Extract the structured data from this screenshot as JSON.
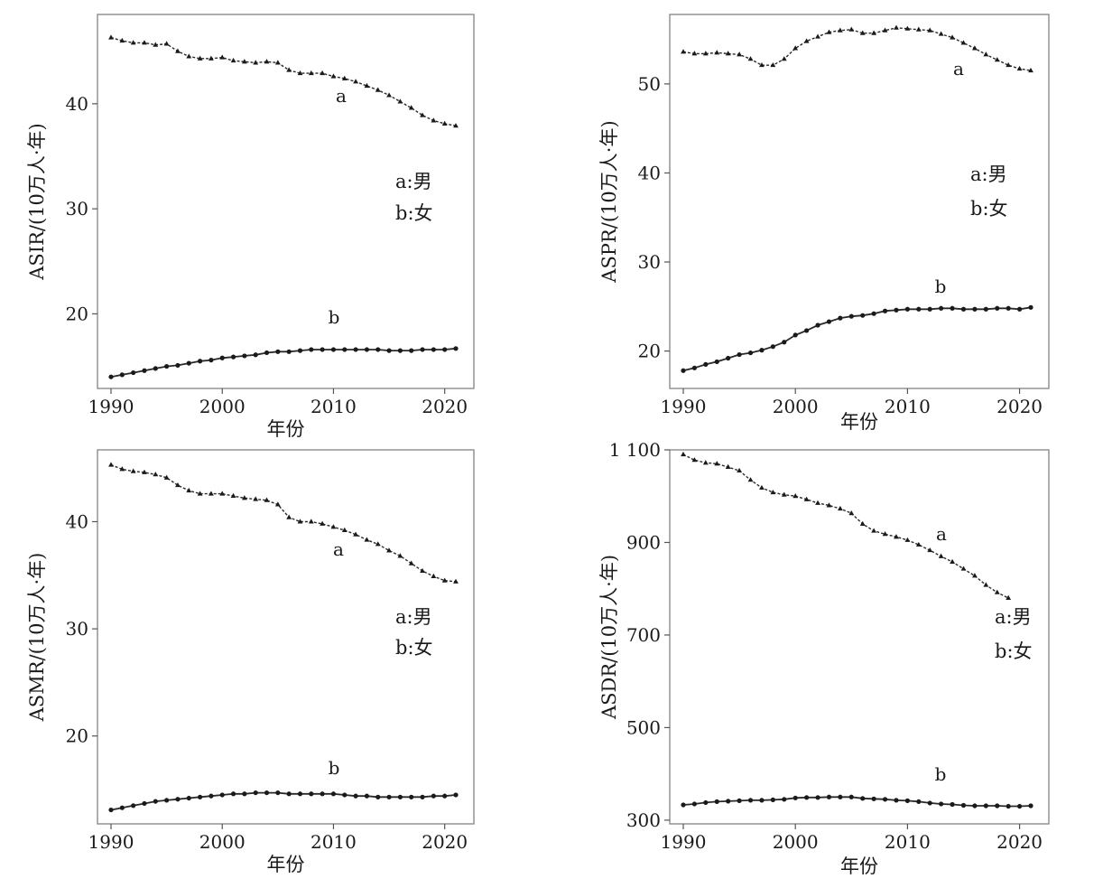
{
  "chart_data": [
    {
      "type": "line",
      "ylabel": "ASIR/(10万人·年)",
      "xlabel": "年份",
      "xlim": [
        1990,
        2021
      ],
      "ylim": [
        12.9,
        48.5
      ],
      "xticks": [
        1990,
        2000,
        2010,
        2020
      ],
      "xtick_labels": [
        "1990",
        "2000",
        "2010",
        "2020"
      ],
      "yticks": [
        20,
        30,
        40
      ],
      "ytick_labels": [
        "20",
        "30",
        "40"
      ],
      "legend": [
        "a:男",
        "b:女"
      ],
      "series": [
        {
          "label": "a",
          "x": [
            1990,
            1991,
            1992,
            1993,
            1994,
            1995,
            1996,
            1997,
            1998,
            1999,
            2000,
            2001,
            2002,
            2003,
            2004,
            2005,
            2006,
            2007,
            2008,
            2009,
            2010,
            2011,
            2012,
            2013,
            2014,
            2015,
            2016,
            2017,
            2018,
            2019,
            2020,
            2021
          ],
          "values": [
            46.3,
            46.0,
            45.8,
            45.8,
            45.6,
            45.7,
            45.0,
            44.5,
            44.3,
            44.3,
            44.4,
            44.1,
            44.0,
            43.9,
            44.0,
            43.9,
            43.2,
            42.9,
            42.9,
            42.9,
            42.6,
            42.4,
            42.1,
            41.7,
            41.3,
            40.8,
            40.2,
            39.6,
            38.9,
            38.4,
            38.1,
            37.9
          ]
        },
        {
          "label": "b",
          "x": [
            1990,
            1991,
            1992,
            1993,
            1994,
            1995,
            1996,
            1997,
            1998,
            1999,
            2000,
            2001,
            2002,
            2003,
            2004,
            2005,
            2006,
            2007,
            2008,
            2009,
            2010,
            2011,
            2012,
            2013,
            2014,
            2015,
            2016,
            2017,
            2018,
            2019,
            2020,
            2021
          ],
          "values": [
            14.0,
            14.2,
            14.4,
            14.6,
            14.8,
            15.0,
            15.1,
            15.3,
            15.5,
            15.6,
            15.8,
            15.9,
            16.0,
            16.1,
            16.3,
            16.4,
            16.4,
            16.5,
            16.6,
            16.6,
            16.6,
            16.6,
            16.6,
            16.6,
            16.6,
            16.5,
            16.5,
            16.5,
            16.6,
            16.6,
            16.6,
            16.7
          ]
        }
      ]
    },
    {
      "type": "line",
      "ylabel": "ASPR/(10万人·年)",
      "xlabel": "年份",
      "xlim": [
        1990,
        2021
      ],
      "ylim": [
        15.8,
        57.8
      ],
      "xticks": [
        1990,
        2000,
        2010,
        2020
      ],
      "xtick_labels": [
        "1990",
        "2000",
        "2010",
        "2020"
      ],
      "yticks": [
        20,
        30,
        40,
        50
      ],
      "ytick_labels": [
        "20",
        "30",
        "40",
        "50"
      ],
      "legend": [
        "a:男",
        "b:女"
      ],
      "series": [
        {
          "label": "a",
          "x": [
            1990,
            1991,
            1992,
            1993,
            1994,
            1995,
            1996,
            1997,
            1998,
            1999,
            2000,
            2001,
            2002,
            2003,
            2004,
            2005,
            2006,
            2007,
            2008,
            2009,
            2010,
            2011,
            2012,
            2013,
            2014,
            2015,
            2016,
            2017,
            2018,
            2019,
            2020,
            2021
          ],
          "values": [
            53.6,
            53.4,
            53.4,
            53.5,
            53.4,
            53.3,
            52.8,
            52.1,
            52.1,
            52.8,
            54.0,
            54.8,
            55.3,
            55.8,
            56.0,
            56.1,
            55.7,
            55.7,
            56.0,
            56.3,
            56.2,
            56.1,
            56.0,
            55.6,
            55.2,
            54.6,
            54.0,
            53.3,
            52.7,
            52.1,
            51.7,
            51.5
          ]
        },
        {
          "label": "b",
          "x": [
            1990,
            1991,
            1992,
            1993,
            1994,
            1995,
            1996,
            1997,
            1998,
            1999,
            2000,
            2001,
            2002,
            2003,
            2004,
            2005,
            2006,
            2007,
            2008,
            2009,
            2010,
            2011,
            2012,
            2013,
            2014,
            2015,
            2016,
            2017,
            2018,
            2019,
            2020,
            2021
          ],
          "values": [
            17.8,
            18.1,
            18.5,
            18.8,
            19.2,
            19.6,
            19.8,
            20.1,
            20.5,
            21.0,
            21.8,
            22.3,
            22.9,
            23.3,
            23.7,
            23.9,
            24.0,
            24.2,
            24.5,
            24.6,
            24.7,
            24.7,
            24.7,
            24.8,
            24.8,
            24.7,
            24.7,
            24.7,
            24.8,
            24.8,
            24.7,
            24.9
          ]
        }
      ]
    },
    {
      "type": "line",
      "ylabel": "ASMR/(10万人·年)",
      "xlabel": "年份",
      "xlim": [
        1990,
        2021
      ],
      "ylim": [
        11.8,
        46.7
      ],
      "xticks": [
        1990,
        2000,
        2010,
        2020
      ],
      "xtick_labels": [
        "1990",
        "2000",
        "2010",
        "2020"
      ],
      "yticks": [
        20,
        30,
        40
      ],
      "ytick_labels": [
        "20",
        "30",
        "40"
      ],
      "legend": [
        "a:男",
        "b:女"
      ],
      "series": [
        {
          "label": "a",
          "x": [
            1990,
            1991,
            1992,
            1993,
            1994,
            1995,
            1996,
            1997,
            1998,
            1999,
            2000,
            2001,
            2002,
            2003,
            2004,
            2005,
            2006,
            2007,
            2008,
            2009,
            2010,
            2011,
            2012,
            2013,
            2014,
            2015,
            2016,
            2017,
            2018,
            2019,
            2020,
            2021
          ],
          "values": [
            45.3,
            44.9,
            44.7,
            44.6,
            44.4,
            44.1,
            43.4,
            42.9,
            42.6,
            42.6,
            42.6,
            42.4,
            42.2,
            42.1,
            42.0,
            41.6,
            40.4,
            40.0,
            40.0,
            39.8,
            39.5,
            39.2,
            38.8,
            38.3,
            37.9,
            37.3,
            36.8,
            36.1,
            35.4,
            34.9,
            34.5,
            34.4
          ]
        },
        {
          "label": "b",
          "x": [
            1990,
            1991,
            1992,
            1993,
            1994,
            1995,
            1996,
            1997,
            1998,
            1999,
            2000,
            2001,
            2002,
            2003,
            2004,
            2005,
            2006,
            2007,
            2008,
            2009,
            2010,
            2011,
            2012,
            2013,
            2014,
            2015,
            2016,
            2017,
            2018,
            2019,
            2020,
            2021
          ],
          "values": [
            13.1,
            13.3,
            13.5,
            13.7,
            13.9,
            14.0,
            14.1,
            14.2,
            14.3,
            14.4,
            14.5,
            14.6,
            14.6,
            14.7,
            14.7,
            14.7,
            14.6,
            14.6,
            14.6,
            14.6,
            14.6,
            14.5,
            14.4,
            14.4,
            14.3,
            14.3,
            14.3,
            14.3,
            14.3,
            14.4,
            14.4,
            14.5
          ]
        }
      ]
    },
    {
      "type": "line",
      "ylabel": "ASDR/(10万人·年)",
      "xlabel": "年份",
      "xlim": [
        1990,
        2021
      ],
      "ylim": [
        292,
        1100
      ],
      "xticks": [
        1990,
        2000,
        2010,
        2020
      ],
      "xtick_labels": [
        "1990",
        "2000",
        "2010",
        "2020"
      ],
      "yticks": [
        300,
        500,
        700,
        900,
        1100
      ],
      "ytick_labels": [
        "300",
        "500",
        "700",
        "900",
        "1 100"
      ],
      "legend": [
        "a:男",
        "b:女"
      ],
      "series": [
        {
          "label": "a",
          "x": [
            1990,
            1991,
            1992,
            1993,
            1994,
            1995,
            1996,
            1997,
            1998,
            1999,
            2000,
            2001,
            2002,
            2003,
            2004,
            2005,
            2006,
            2007,
            2008,
            2009,
            2010,
            2011,
            2012,
            2013,
            2014,
            2015,
            2016,
            2017,
            2018,
            2019
          ],
          "values": [
            1090,
            1078,
            1072,
            1070,
            1063,
            1055,
            1035,
            1018,
            1008,
            1003,
            1000,
            993,
            985,
            980,
            973,
            963,
            940,
            925,
            918,
            912,
            905,
            895,
            883,
            870,
            858,
            843,
            828,
            808,
            792,
            780
          ]
        },
        {
          "label": "b",
          "x": [
            1990,
            1991,
            1992,
            1993,
            1994,
            1995,
            1996,
            1997,
            1998,
            1999,
            2000,
            2001,
            2002,
            2003,
            2004,
            2005,
            2006,
            2007,
            2008,
            2009,
            2010,
            2011,
            2012,
            2013,
            2014,
            2015,
            2016,
            2017,
            2018,
            2019,
            2020,
            2021
          ],
          "values": [
            333,
            335,
            338,
            340,
            341,
            342,
            343,
            343,
            344,
            345,
            348,
            349,
            349,
            350,
            350,
            350,
            347,
            346,
            345,
            343,
            342,
            340,
            337,
            335,
            334,
            332,
            331,
            331,
            331,
            330,
            330,
            331
          ]
        }
      ]
    }
  ]
}
